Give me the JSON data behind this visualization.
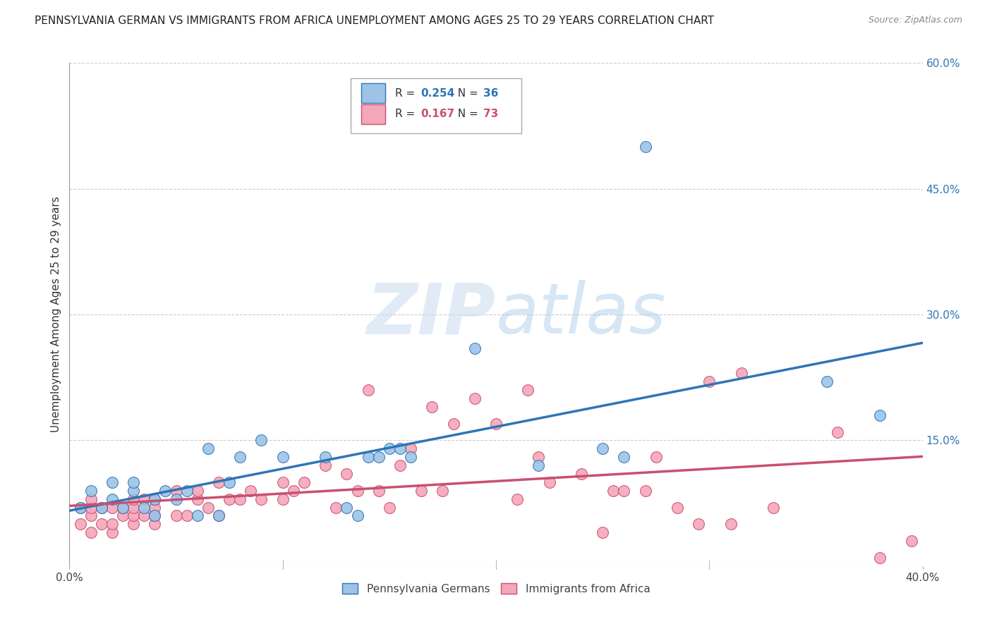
{
  "title": "PENNSYLVANIA GERMAN VS IMMIGRANTS FROM AFRICA UNEMPLOYMENT AMONG AGES 25 TO 29 YEARS CORRELATION CHART",
  "source": "Source: ZipAtlas.com",
  "ylabel": "Unemployment Among Ages 25 to 29 years",
  "right_ylabel_color": "#4472c4",
  "xlim": [
    0.0,
    0.4
  ],
  "ylim": [
    0.0,
    0.6
  ],
  "xticks": [
    0.0,
    0.1,
    0.2,
    0.3,
    0.4
  ],
  "xticklabels": [
    "0.0%",
    "",
    "",
    "",
    "40.0%"
  ],
  "yticks_right": [
    0.0,
    0.15,
    0.3,
    0.45,
    0.6
  ],
  "ytick_right_labels": [
    "",
    "15.0%",
    "30.0%",
    "45.0%",
    "60.0%"
  ],
  "blue_color": "#9dc3e6",
  "blue_line_color": "#2e75b6",
  "pink_color": "#f4a7b9",
  "pink_line_color": "#c9506e",
  "blue_label": "Pennsylvania Germans",
  "pink_label": "Immigrants from Africa",
  "blue_R": 0.254,
  "blue_N": 36,
  "pink_R": 0.167,
  "pink_N": 73,
  "watermark_zip": "ZIP",
  "watermark_atlas": "atlas",
  "blue_x": [
    0.005,
    0.01,
    0.015,
    0.02,
    0.02,
    0.025,
    0.03,
    0.03,
    0.035,
    0.04,
    0.04,
    0.045,
    0.05,
    0.055,
    0.06,
    0.065,
    0.07,
    0.075,
    0.08,
    0.09,
    0.1,
    0.12,
    0.13,
    0.135,
    0.14,
    0.145,
    0.15,
    0.155,
    0.16,
    0.19,
    0.22,
    0.25,
    0.26,
    0.27,
    0.355,
    0.38
  ],
  "blue_y": [
    0.07,
    0.09,
    0.07,
    0.1,
    0.08,
    0.07,
    0.09,
    0.1,
    0.07,
    0.06,
    0.08,
    0.09,
    0.08,
    0.09,
    0.06,
    0.14,
    0.06,
    0.1,
    0.13,
    0.15,
    0.13,
    0.13,
    0.07,
    0.06,
    0.13,
    0.13,
    0.14,
    0.14,
    0.13,
    0.26,
    0.12,
    0.14,
    0.13,
    0.5,
    0.22,
    0.18
  ],
  "pink_x": [
    0.005,
    0.005,
    0.01,
    0.01,
    0.01,
    0.01,
    0.015,
    0.015,
    0.02,
    0.02,
    0.02,
    0.025,
    0.025,
    0.03,
    0.03,
    0.03,
    0.03,
    0.035,
    0.035,
    0.04,
    0.04,
    0.04,
    0.04,
    0.05,
    0.05,
    0.055,
    0.06,
    0.06,
    0.065,
    0.07,
    0.07,
    0.075,
    0.08,
    0.085,
    0.09,
    0.1,
    0.1,
    0.105,
    0.11,
    0.12,
    0.125,
    0.13,
    0.135,
    0.14,
    0.145,
    0.15,
    0.155,
    0.16,
    0.165,
    0.17,
    0.175,
    0.18,
    0.19,
    0.2,
    0.21,
    0.215,
    0.22,
    0.225,
    0.24,
    0.25,
    0.255,
    0.26,
    0.27,
    0.275,
    0.285,
    0.295,
    0.3,
    0.31,
    0.315,
    0.33,
    0.36,
    0.38,
    0.395
  ],
  "pink_y": [
    0.05,
    0.07,
    0.04,
    0.06,
    0.07,
    0.08,
    0.05,
    0.07,
    0.04,
    0.05,
    0.07,
    0.06,
    0.07,
    0.05,
    0.06,
    0.07,
    0.08,
    0.06,
    0.08,
    0.05,
    0.06,
    0.07,
    0.08,
    0.06,
    0.09,
    0.06,
    0.08,
    0.09,
    0.07,
    0.06,
    0.1,
    0.08,
    0.08,
    0.09,
    0.08,
    0.08,
    0.1,
    0.09,
    0.1,
    0.12,
    0.07,
    0.11,
    0.09,
    0.21,
    0.09,
    0.07,
    0.12,
    0.14,
    0.09,
    0.19,
    0.09,
    0.17,
    0.2,
    0.17,
    0.08,
    0.21,
    0.13,
    0.1,
    0.11,
    0.04,
    0.09,
    0.09,
    0.09,
    0.13,
    0.07,
    0.05,
    0.22,
    0.05,
    0.23,
    0.07,
    0.16,
    0.01,
    0.03
  ],
  "background_color": "#ffffff",
  "grid_color": "#cccccc",
  "title_fontsize": 11,
  "axis_label_fontsize": 11,
  "tick_fontsize": 11
}
